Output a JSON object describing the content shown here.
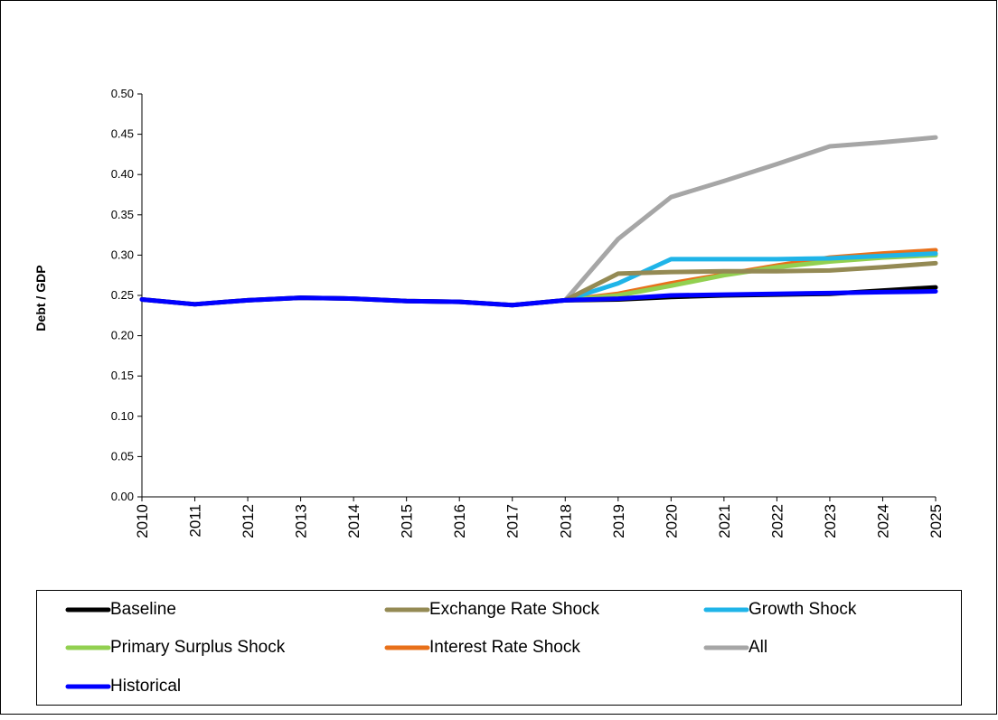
{
  "chart_data": {
    "type": "line",
    "y_label": "Debt / GDP",
    "x": [
      2010,
      2011,
      2012,
      2013,
      2014,
      2015,
      2016,
      2017,
      2018,
      2019,
      2020,
      2021,
      2022,
      2023,
      2024,
      2025
    ],
    "xlim": [
      2010,
      2025
    ],
    "xticks": [
      2010,
      2011,
      2012,
      2013,
      2014,
      2015,
      2016,
      2017,
      2018,
      2019,
      2020,
      2021,
      2022,
      2023,
      2024,
      2025
    ],
    "ylim": [
      0,
      0.5
    ],
    "yticks": [
      {
        "value": 0,
        "label": "0.00"
      },
      {
        "value": 0.05,
        "label": "0.05"
      },
      {
        "value": 0.1,
        "label": "0.10"
      },
      {
        "value": 0.15,
        "label": "0.15"
      },
      {
        "value": 0.2,
        "label": "0.20"
      },
      {
        "value": 0.25,
        "label": "0.25"
      },
      {
        "value": 0.3,
        "label": "0.30"
      },
      {
        "value": 0.35,
        "label": "0.35"
      },
      {
        "value": 0.4,
        "label": "0.40"
      },
      {
        "value": 0.45,
        "label": "0.45"
      },
      {
        "value": 0.5,
        "label": "0.50"
      }
    ],
    "grid": false,
    "legend": "bottom",
    "series": [
      {
        "name": "Baseline",
        "color": "#000000",
        "values": [
          0.245,
          0.239,
          0.244,
          0.247,
          0.246,
          0.243,
          0.242,
          0.238,
          0.244,
          0.245,
          0.248,
          0.25,
          0.251,
          0.252,
          0.256,
          0.26
        ]
      },
      {
        "name": "Exchange Rate Shock",
        "color": "#948a54",
        "values": [
          null,
          null,
          null,
          null,
          null,
          null,
          null,
          null,
          0.244,
          0.277,
          0.279,
          0.28,
          0.28,
          0.281,
          0.285,
          0.29
        ]
      },
      {
        "name": "Growth Shock",
        "color": "#1fb4e8",
        "values": [
          null,
          null,
          null,
          null,
          null,
          null,
          null,
          null,
          0.244,
          0.265,
          0.295,
          0.295,
          0.295,
          0.296,
          0.299,
          0.302
        ]
      },
      {
        "name": "Primary Surplus Shock",
        "color": "#92d050",
        "values": [
          null,
          null,
          null,
          null,
          null,
          null,
          null,
          null,
          0.244,
          0.25,
          0.262,
          0.275,
          0.285,
          0.292,
          0.297,
          0.3
        ]
      },
      {
        "name": "Interest Rate Shock",
        "color": "#e8701a",
        "values": [
          null,
          null,
          null,
          null,
          null,
          null,
          null,
          null,
          0.244,
          0.252,
          0.265,
          0.276,
          0.287,
          0.297,
          0.302,
          0.306
        ]
      },
      {
        "name": "All",
        "color": "#a6a6a6",
        "values": [
          null,
          null,
          null,
          null,
          null,
          null,
          null,
          null,
          0.244,
          0.32,
          0.372,
          0.392,
          0.413,
          0.435,
          0.44,
          0.446
        ]
      },
      {
        "name": "Historical",
        "color": "#0000ff",
        "values": [
          0.245,
          0.239,
          0.244,
          0.247,
          0.246,
          0.243,
          0.242,
          0.238,
          0.244,
          0.246,
          0.25,
          0.251,
          0.252,
          0.253,
          0.254,
          0.255
        ]
      }
    ]
  }
}
